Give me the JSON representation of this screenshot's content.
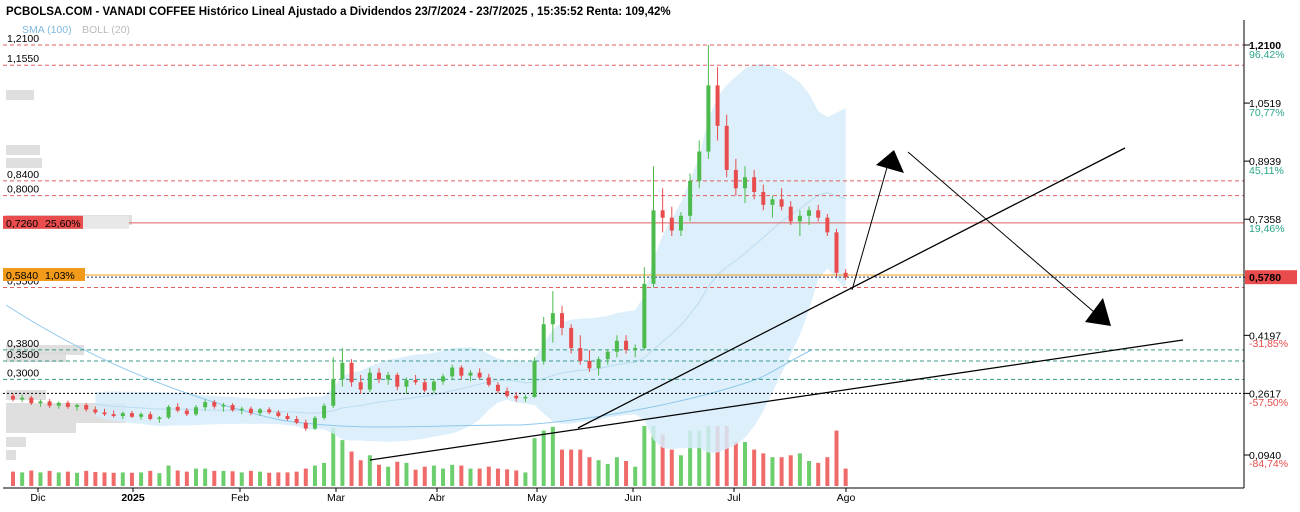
{
  "chart_data": {
    "type": "candlestick",
    "title": "PCBOLSA.COM - VANADI COFFEE Histórico Lineal Ajustado a Dividendos 23/7/2024 - 23/7/2025 , 15:35:52 Renta: 109,42%",
    "indicators": [
      "SMA (100)",
      "BOLL (20)"
    ],
    "colors": {
      "up": "#4cbb4c",
      "down": "#e84c4c",
      "band": "#d6ecfa",
      "sma": "#8ec8ec",
      "volume": "#d8d8d8"
    },
    "y_axis": {
      "ticks": [
        "1,2100",
        "1,0519",
        "0,8939",
        "0,7358",
        "0,5778",
        "0,4197",
        "0,2617",
        "0,0940"
      ]
    },
    "y_percent_labels": [
      "96,42%",
      "70,77%",
      "45,11%",
      "19,46%",
      "-31,85%",
      "-57,50%",
      "-84,74%"
    ],
    "left_levels": [
      "1,2100",
      "1,1550",
      "0,8400",
      "0,8000",
      "0,5500",
      "0,3800",
      "0,3500",
      "0,3000"
    ],
    "red_level_tag": {
      "value": "0,7260",
      "pct": "25,60%"
    },
    "orange_level_tag": {
      "value": "0,5840",
      "pct": "1,03%"
    },
    "last_price_tag": "0,5780",
    "months": [
      "Dic",
      "2025",
      "Feb",
      "Mar",
      "Abr",
      "May",
      "Jun",
      "Jul",
      "Ago"
    ],
    "ohlc": [
      {
        "o": 0.255,
        "h": 0.262,
        "l": 0.24,
        "c": 0.245
      },
      {
        "o": 0.245,
        "h": 0.258,
        "l": 0.238,
        "c": 0.25
      },
      {
        "o": 0.25,
        "h": 0.255,
        "l": 0.23,
        "c": 0.235
      },
      {
        "o": 0.235,
        "h": 0.245,
        "l": 0.225,
        "c": 0.24
      },
      {
        "o": 0.24,
        "h": 0.246,
        "l": 0.222,
        "c": 0.228
      },
      {
        "o": 0.228,
        "h": 0.24,
        "l": 0.22,
        "c": 0.236
      },
      {
        "o": 0.236,
        "h": 0.242,
        "l": 0.22,
        "c": 0.225
      },
      {
        "o": 0.225,
        "h": 0.234,
        "l": 0.215,
        "c": 0.23
      },
      {
        "o": 0.23,
        "h": 0.236,
        "l": 0.212,
        "c": 0.218
      },
      {
        "o": 0.218,
        "h": 0.226,
        "l": 0.205,
        "c": 0.21
      },
      {
        "o": 0.21,
        "h": 0.22,
        "l": 0.2,
        "c": 0.205
      },
      {
        "o": 0.205,
        "h": 0.215,
        "l": 0.196,
        "c": 0.2
      },
      {
        "o": 0.2,
        "h": 0.212,
        "l": 0.192,
        "c": 0.208
      },
      {
        "o": 0.208,
        "h": 0.214,
        "l": 0.195,
        "c": 0.198
      },
      {
        "o": 0.198,
        "h": 0.21,
        "l": 0.19,
        "c": 0.205
      },
      {
        "o": 0.205,
        "h": 0.212,
        "l": 0.188,
        "c": 0.192
      },
      {
        "o": 0.192,
        "h": 0.2,
        "l": 0.182,
        "c": 0.196
      },
      {
        "o": 0.196,
        "h": 0.23,
        "l": 0.192,
        "c": 0.225
      },
      {
        "o": 0.225,
        "h": 0.235,
        "l": 0.21,
        "c": 0.215
      },
      {
        "o": 0.215,
        "h": 0.222,
        "l": 0.2,
        "c": 0.205
      },
      {
        "o": 0.205,
        "h": 0.23,
        "l": 0.2,
        "c": 0.224
      },
      {
        "o": 0.224,
        "h": 0.245,
        "l": 0.215,
        "c": 0.238
      },
      {
        "o": 0.238,
        "h": 0.244,
        "l": 0.22,
        "c": 0.226
      },
      {
        "o": 0.226,
        "h": 0.236,
        "l": 0.212,
        "c": 0.23
      },
      {
        "o": 0.23,
        "h": 0.235,
        "l": 0.212,
        "c": 0.216
      },
      {
        "o": 0.216,
        "h": 0.225,
        "l": 0.205,
        "c": 0.22
      },
      {
        "o": 0.22,
        "h": 0.226,
        "l": 0.202,
        "c": 0.208
      },
      {
        "o": 0.208,
        "h": 0.222,
        "l": 0.2,
        "c": 0.218
      },
      {
        "o": 0.218,
        "h": 0.224,
        "l": 0.205,
        "c": 0.21
      },
      {
        "o": 0.21,
        "h": 0.216,
        "l": 0.196,
        "c": 0.2
      },
      {
        "o": 0.2,
        "h": 0.208,
        "l": 0.188,
        "c": 0.192
      },
      {
        "o": 0.192,
        "h": 0.2,
        "l": 0.178,
        "c": 0.182
      },
      {
        "o": 0.182,
        "h": 0.19,
        "l": 0.16,
        "c": 0.166
      },
      {
        "o": 0.166,
        "h": 0.2,
        "l": 0.162,
        "c": 0.195
      },
      {
        "o": 0.195,
        "h": 0.235,
        "l": 0.19,
        "c": 0.228
      },
      {
        "o": 0.228,
        "h": 0.36,
        "l": 0.222,
        "c": 0.3
      },
      {
        "o": 0.3,
        "h": 0.385,
        "l": 0.28,
        "c": 0.345
      },
      {
        "o": 0.345,
        "h": 0.355,
        "l": 0.28,
        "c": 0.292
      },
      {
        "o": 0.292,
        "h": 0.312,
        "l": 0.26,
        "c": 0.272
      },
      {
        "o": 0.272,
        "h": 0.33,
        "l": 0.265,
        "c": 0.318
      },
      {
        "o": 0.318,
        "h": 0.33,
        "l": 0.29,
        "c": 0.3
      },
      {
        "o": 0.3,
        "h": 0.32,
        "l": 0.285,
        "c": 0.312
      },
      {
        "o": 0.312,
        "h": 0.318,
        "l": 0.27,
        "c": 0.28
      },
      {
        "o": 0.28,
        "h": 0.305,
        "l": 0.26,
        "c": 0.298
      },
      {
        "o": 0.298,
        "h": 0.312,
        "l": 0.285,
        "c": 0.292
      },
      {
        "o": 0.292,
        "h": 0.3,
        "l": 0.265,
        "c": 0.27
      },
      {
        "o": 0.27,
        "h": 0.3,
        "l": 0.262,
        "c": 0.294
      },
      {
        "o": 0.294,
        "h": 0.315,
        "l": 0.285,
        "c": 0.308
      },
      {
        "o": 0.308,
        "h": 0.34,
        "l": 0.3,
        "c": 0.332
      },
      {
        "o": 0.332,
        "h": 0.338,
        "l": 0.3,
        "c": 0.31
      },
      {
        "o": 0.31,
        "h": 0.325,
        "l": 0.295,
        "c": 0.318
      },
      {
        "o": 0.318,
        "h": 0.33,
        "l": 0.3,
        "c": 0.305
      },
      {
        "o": 0.305,
        "h": 0.315,
        "l": 0.28,
        "c": 0.285
      },
      {
        "o": 0.285,
        "h": 0.292,
        "l": 0.262,
        "c": 0.268
      },
      {
        "o": 0.268,
        "h": 0.278,
        "l": 0.25,
        "c": 0.255
      },
      {
        "o": 0.255,
        "h": 0.265,
        "l": 0.24,
        "c": 0.248
      },
      {
        "o": 0.248,
        "h": 0.258,
        "l": 0.238,
        "c": 0.252
      },
      {
        "o": 0.252,
        "h": 0.36,
        "l": 0.25,
        "c": 0.35
      },
      {
        "o": 0.35,
        "h": 0.47,
        "l": 0.34,
        "c": 0.45
      },
      {
        "o": 0.45,
        "h": 0.54,
        "l": 0.4,
        "c": 0.48
      },
      {
        "o": 0.48,
        "h": 0.5,
        "l": 0.42,
        "c": 0.44
      },
      {
        "o": 0.44,
        "h": 0.45,
        "l": 0.37,
        "c": 0.385
      },
      {
        "o": 0.385,
        "h": 0.42,
        "l": 0.34,
        "c": 0.35
      },
      {
        "o": 0.35,
        "h": 0.38,
        "l": 0.32,
        "c": 0.33
      },
      {
        "o": 0.33,
        "h": 0.362,
        "l": 0.31,
        "c": 0.355
      },
      {
        "o": 0.355,
        "h": 0.382,
        "l": 0.34,
        "c": 0.375
      },
      {
        "o": 0.375,
        "h": 0.42,
        "l": 0.36,
        "c": 0.405
      },
      {
        "o": 0.405,
        "h": 0.42,
        "l": 0.37,
        "c": 0.38
      },
      {
        "o": 0.38,
        "h": 0.395,
        "l": 0.36,
        "c": 0.385
      },
      {
        "o": 0.385,
        "h": 0.605,
        "l": 0.38,
        "c": 0.56
      },
      {
        "o": 0.56,
        "h": 0.88,
        "l": 0.55,
        "c": 0.76
      },
      {
        "o": 0.76,
        "h": 0.82,
        "l": 0.7,
        "c": 0.74
      },
      {
        "o": 0.74,
        "h": 0.77,
        "l": 0.69,
        "c": 0.705
      },
      {
        "o": 0.705,
        "h": 0.755,
        "l": 0.69,
        "c": 0.745
      },
      {
        "o": 0.745,
        "h": 0.86,
        "l": 0.73,
        "c": 0.84
      },
      {
        "o": 0.84,
        "h": 0.95,
        "l": 0.82,
        "c": 0.92
      },
      {
        "o": 0.92,
        "h": 1.21,
        "l": 0.9,
        "c": 1.1
      },
      {
        "o": 1.1,
        "h": 1.15,
        "l": 0.95,
        "c": 0.99
      },
      {
        "o": 0.99,
        "h": 1.02,
        "l": 0.85,
        "c": 0.87
      },
      {
        "o": 0.87,
        "h": 0.9,
        "l": 0.8,
        "c": 0.82
      },
      {
        "o": 0.82,
        "h": 0.88,
        "l": 0.78,
        "c": 0.85
      },
      {
        "o": 0.85,
        "h": 0.87,
        "l": 0.79,
        "c": 0.81
      },
      {
        "o": 0.81,
        "h": 0.83,
        "l": 0.76,
        "c": 0.775
      },
      {
        "o": 0.775,
        "h": 0.8,
        "l": 0.74,
        "c": 0.79
      },
      {
        "o": 0.79,
        "h": 0.82,
        "l": 0.76,
        "c": 0.77
      },
      {
        "o": 0.77,
        "h": 0.785,
        "l": 0.72,
        "c": 0.73
      },
      {
        "o": 0.73,
        "h": 0.76,
        "l": 0.69,
        "c": 0.745
      },
      {
        "o": 0.745,
        "h": 0.77,
        "l": 0.72,
        "c": 0.76
      },
      {
        "o": 0.76,
        "h": 0.775,
        "l": 0.73,
        "c": 0.74
      },
      {
        "o": 0.74,
        "h": 0.75,
        "l": 0.69,
        "c": 0.7
      },
      {
        "o": 0.7,
        "h": 0.71,
        "l": 0.58,
        "c": 0.59
      },
      {
        "o": 0.59,
        "h": 0.6,
        "l": 0.57,
        "c": 0.578
      }
    ]
  }
}
